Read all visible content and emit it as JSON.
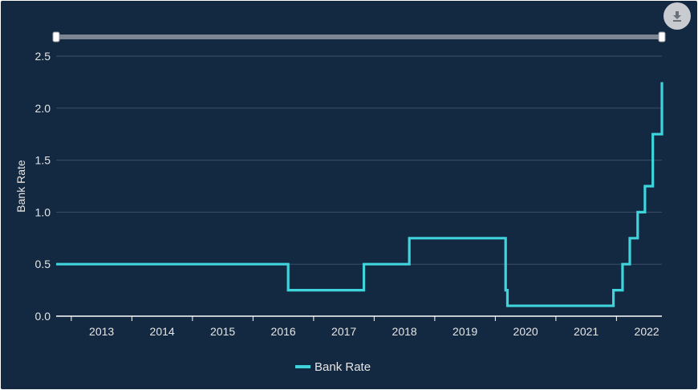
{
  "toolbar": {
    "download_icon": "download-icon"
  },
  "colors": {
    "background": "#132841",
    "series": "#3fd4dc",
    "grid": "#3d4f66",
    "axis": "#ffffff",
    "navigator": "#7c8591"
  },
  "chart_data": {
    "type": "line",
    "step": true,
    "title": "",
    "xlabel": "",
    "ylabel": "Bank Rate",
    "ylim": [
      0,
      2.5
    ],
    "xlim": [
      2012.25,
      2022.25
    ],
    "yticks": [
      "0.0",
      "0.5",
      "1.0",
      "1.5",
      "2.0",
      "2.5"
    ],
    "xticks": [
      "2013",
      "2014",
      "2015",
      "2016",
      "2017",
      "2018",
      "2019",
      "2020",
      "2021",
      "2022"
    ],
    "grid": true,
    "legend_position": "bottom-center",
    "series": [
      {
        "name": "Bank Rate",
        "x": [
          2012.25,
          2016.08,
          2017.33,
          2018.08,
          2019.67,
          2019.7,
          2021.45,
          2021.6,
          2021.72,
          2021.85,
          2021.97,
          2022.1,
          2022.25
        ],
        "values": [
          0.5,
          0.25,
          0.5,
          0.75,
          0.25,
          0.1,
          0.25,
          0.5,
          0.75,
          1.0,
          1.25,
          1.75,
          2.25
        ]
      }
    ]
  }
}
